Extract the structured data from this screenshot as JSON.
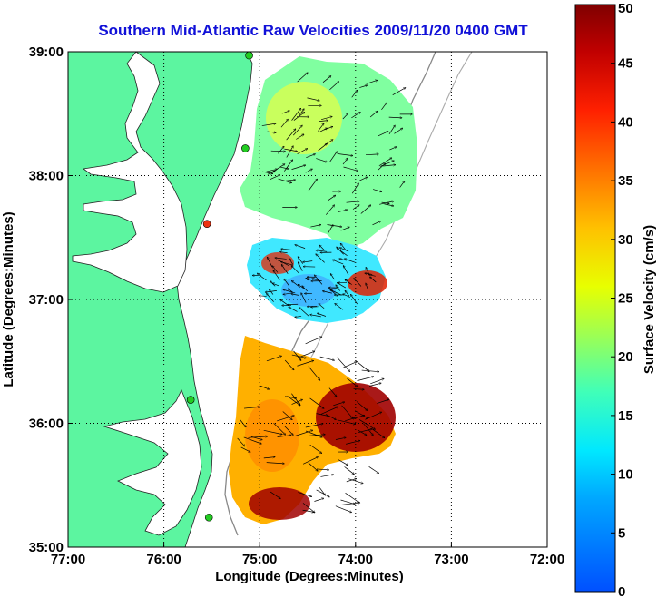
{
  "title": "Southern Mid-Atlantic Raw Velocities 2009/11/20 0400 GMT",
  "chart_data": {
    "type": "heatmap",
    "title": "Southern Mid-Atlantic Raw Velocities 2009/11/20 0400 GMT",
    "xlabel": "Longitude (Degrees:Minutes)",
    "ylabel": "Latitude (Degrees:Minutes)",
    "x_ticks": [
      "77:00",
      "76:00",
      "75:00",
      "74:00",
      "73:00",
      "72:00"
    ],
    "y_ticks": [
      "39:00",
      "38:00",
      "37:00",
      "36:00",
      "35:00"
    ],
    "xlim": [
      -77,
      -72
    ],
    "ylim": [
      35,
      39
    ],
    "grid": true,
    "colorbar": {
      "label": "Surface Velocity (cm/s)",
      "range": [
        0,
        50
      ],
      "ticks": [
        "0",
        "5",
        "10",
        "15",
        "20",
        "25",
        "30",
        "35",
        "40",
        "45",
        "50"
      ]
    },
    "colors": {
      "land": "#5cf5a0",
      "title": "#1010d8",
      "station": "#22cc22",
      "station_alert": "#ee3311"
    },
    "stations": [
      {
        "lon": -75.11,
        "lat": 38.97,
        "status": "ok"
      },
      {
        "lon": -75.15,
        "lat": 38.22,
        "status": "ok"
      },
      {
        "lon": -75.55,
        "lat": 37.61,
        "status": "alert"
      },
      {
        "lon": -75.72,
        "lat": 36.19,
        "status": "ok"
      },
      {
        "lon": -75.53,
        "lat": 35.24,
        "status": "ok"
      }
    ]
  }
}
